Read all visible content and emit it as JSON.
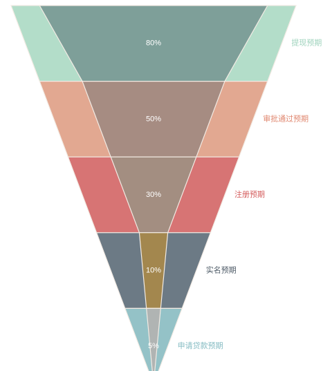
{
  "chart_data": {
    "type": "funnel",
    "orientation": "inverted",
    "stages": [
      {
        "name": "提现预期",
        "outer_color": "#b3ddc9",
        "inner_color": "#7e9f99"
      },
      {
        "name": "审批通过预期",
        "outer_color": "#e2a891",
        "inner_color": "#a68c82"
      },
      {
        "name": "注册预期",
        "outer_color": "#d77474",
        "inner_color": "#a38e81"
      },
      {
        "name": "实名预期",
        "outer_color": "#6c7a85",
        "inner_color": "#a3874e"
      },
      {
        "name": "申请贷款预期",
        "outer_color": "#94c2c7",
        "inner_color": "#b0b4b3"
      }
    ],
    "series": [
      {
        "name": "outer",
        "values": [
          100,
          80,
          60,
          40,
          20
        ]
      },
      {
        "name": "inner",
        "values": [
          80,
          50,
          30,
          10,
          5
        ],
        "labels": [
          "80%",
          "50%",
          "30%",
          "10%",
          "5%"
        ]
      }
    ],
    "stage_label_colors": [
      "#9fd3bd",
      "#e0876f",
      "#d45c5c",
      "#4d5a66",
      "#86bcc3"
    ],
    "divider_color": "#f2ebe4",
    "legend": false
  }
}
